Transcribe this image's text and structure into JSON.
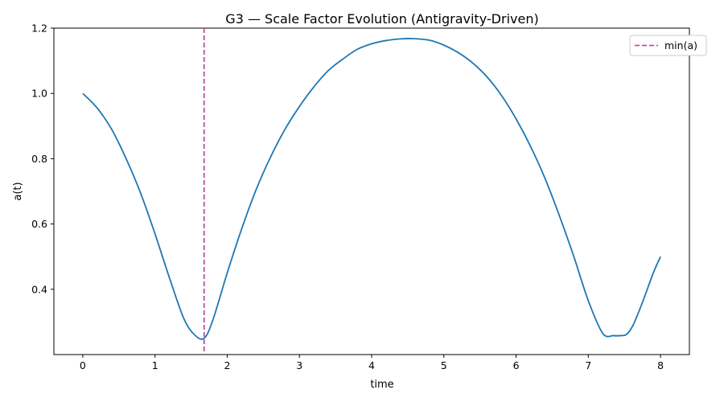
{
  "chart_data": {
    "type": "line",
    "title": "G3 — Scale Factor Evolution (Antigravity-Driven)",
    "xlabel": "time",
    "ylabel": "a(t)",
    "xlim": [
      -0.4,
      8.4
    ],
    "ylim": [
      0.2,
      1.2
    ],
    "xticks": [
      0,
      1,
      2,
      3,
      4,
      5,
      6,
      7,
      8
    ],
    "yticks": [
      0.4,
      0.6,
      0.8,
      1.0,
      1.2
    ],
    "xtick_labels": [
      "0",
      "1",
      "2",
      "3",
      "4",
      "5",
      "6",
      "7",
      "8"
    ],
    "ytick_labels": [
      "0.4",
      "0.6",
      "0.8",
      "1.0",
      "1.2"
    ],
    "grid": false,
    "legend_position": "top-right",
    "series": [
      {
        "color": "#1f77b4",
        "x": [
          0.0,
          0.2,
          0.4,
          0.6,
          0.8,
          1.0,
          1.2,
          1.4,
          1.55,
          1.68,
          1.8,
          2.0,
          2.2,
          2.4,
          2.6,
          2.8,
          3.0,
          3.2,
          3.4,
          3.6,
          3.8,
          4.0,
          4.2,
          4.4,
          4.57,
          4.8,
          5.0,
          5.2,
          5.4,
          5.6,
          5.8,
          6.0,
          6.2,
          6.4,
          6.6,
          6.8,
          7.0,
          7.2,
          7.35,
          7.45,
          7.53,
          7.62,
          7.75,
          7.9,
          8.0
        ],
        "y": [
          1.0,
          0.955,
          0.89,
          0.8,
          0.695,
          0.57,
          0.435,
          0.31,
          0.26,
          0.25,
          0.305,
          0.45,
          0.585,
          0.705,
          0.805,
          0.89,
          0.96,
          1.02,
          1.07,
          1.105,
          1.135,
          1.152,
          1.162,
          1.167,
          1.168,
          1.163,
          1.148,
          1.125,
          1.093,
          1.05,
          0.993,
          0.922,
          0.838,
          0.74,
          0.625,
          0.5,
          0.365,
          0.265,
          0.258,
          0.258,
          0.262,
          0.29,
          0.36,
          0.45,
          0.5
        ]
      }
    ],
    "vline": {
      "x": 1.68,
      "label": "min(a)",
      "color": "#b84fa6"
    }
  }
}
